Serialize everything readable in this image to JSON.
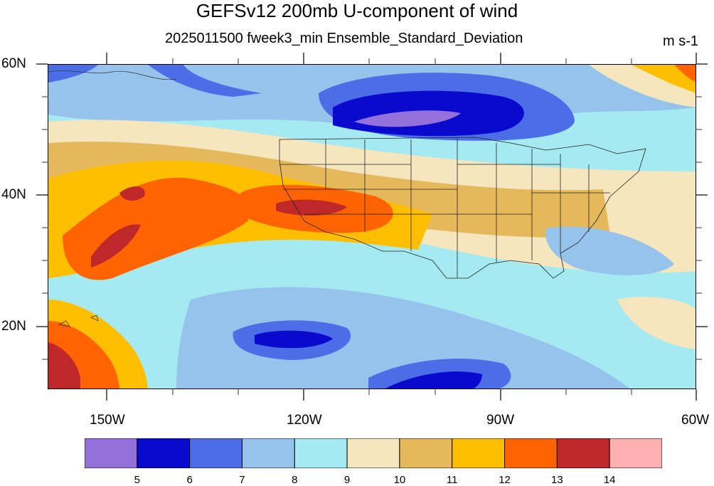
{
  "title": "GEFSv12 200mb U-component of wind",
  "subtitle": "2025011500 fweek3_min Ensemble_Standard_Deviation",
  "units": "m s-1",
  "axes": {
    "lat_labels": [
      "60N",
      "40N",
      "20N"
    ],
    "lon_labels": [
      "150W",
      "120W",
      "90W",
      "60W"
    ]
  },
  "colorbar": {
    "labels": [
      "5",
      "6",
      "7",
      "8",
      "9",
      "10",
      "11",
      "12",
      "13",
      "14"
    ],
    "colors": [
      "#9370db",
      "#0a0acd",
      "#4b6ee6",
      "#96c3eb",
      "#a5eaf0",
      "#f5e6be",
      "#e6b85c",
      "#ffbe00",
      "#ff6400",
      "#be2828",
      "#ffafaf"
    ]
  }
}
